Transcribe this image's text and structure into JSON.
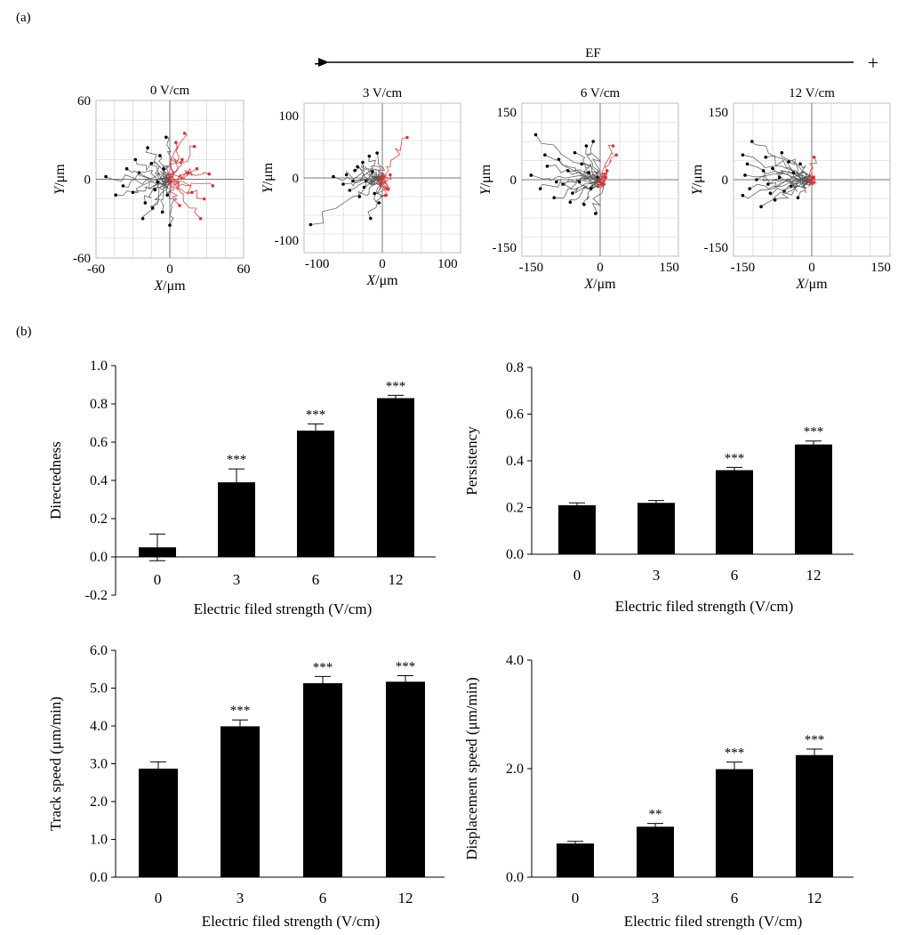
{
  "panel_labels": {
    "a": "(a)",
    "b": "(b)"
  },
  "ef_indicator": {
    "label": "EF",
    "minus": "-",
    "plus": "+"
  },
  "colors": {
    "bars": "#000000",
    "track_black": "#000000",
    "track_red": "#e03030",
    "grid": "#cfcfcf"
  },
  "chart_data": [
    {
      "type": "scatter",
      "title": "0 V/cm",
      "xlabel_italic": "X",
      "xlabel_unit": "/μm",
      "ylabel_italic": "Y",
      "ylabel_unit": "/μm",
      "xlim": [
        -60,
        60
      ],
      "ylim": [
        -60,
        60
      ],
      "xticks": [
        "-60",
        "0",
        "60"
      ],
      "yticks": [
        "60",
        "0",
        "-60"
      ],
      "grid": true,
      "series": [
        {
          "color": "black",
          "endpoints": [
            [
              -52,
              2
            ],
            [
              -44,
              -12
            ],
            [
              -38,
              -5
            ],
            [
              -30,
              -10
            ],
            [
              -25,
              5
            ],
            [
              -20,
              -18
            ],
            [
              -15,
              12
            ],
            [
              -12,
              -8
            ],
            [
              -8,
              18
            ],
            [
              -6,
              -25
            ],
            [
              -3,
              32
            ],
            [
              0,
              -35
            ],
            [
              -18,
              24
            ],
            [
              -22,
              -30
            ],
            [
              -10,
              -2
            ],
            [
              -5,
              8
            ],
            [
              -2,
              -12
            ],
            [
              -14,
              -22
            ],
            [
              -28,
              15
            ],
            [
              -35,
              8
            ]
          ]
        },
        {
          "color": "red",
          "endpoints": [
            [
              12,
              35
            ],
            [
              20,
              25
            ],
            [
              28,
              -15
            ],
            [
              32,
              4
            ],
            [
              25,
              -30
            ],
            [
              8,
              -20
            ],
            [
              15,
              5
            ],
            [
              10,
              15
            ],
            [
              22,
              8
            ],
            [
              35,
              -5
            ],
            [
              18,
              -10
            ],
            [
              5,
              28
            ]
          ]
        }
      ]
    },
    {
      "type": "scatter",
      "title": "3 V/cm",
      "xlabel_italic": "X",
      "xlabel_unit": "/μm",
      "ylabel_italic": "Y",
      "ylabel_unit": "/μm",
      "xlim": [
        -120,
        120
      ],
      "ylim": [
        -120,
        120
      ],
      "xticks": [
        "-100",
        "0",
        "100"
      ],
      "yticks": [
        "100",
        "0",
        "-100"
      ],
      "grid": true,
      "series": [
        {
          "color": "black",
          "endpoints": [
            [
              -110,
              -75
            ],
            [
              -75,
              2
            ],
            [
              -60,
              -10
            ],
            [
              -50,
              -20
            ],
            [
              -42,
              12
            ],
            [
              -35,
              -30
            ],
            [
              -30,
              25
            ],
            [
              -25,
              -5
            ],
            [
              -18,
              -65
            ],
            [
              -20,
              35
            ],
            [
              -12,
              -25
            ],
            [
              -8,
              40
            ],
            [
              -5,
              -40
            ],
            [
              -45,
              -5
            ],
            [
              -38,
              18
            ],
            [
              -28,
              -15
            ],
            [
              -15,
              10
            ],
            [
              -55,
              5
            ]
          ]
        },
        {
          "color": "red",
          "endpoints": [
            [
              38,
              65
            ],
            [
              8,
              -18
            ],
            [
              12,
              5
            ],
            [
              -3,
              -10
            ],
            [
              5,
              -28
            ]
          ]
        }
      ]
    },
    {
      "type": "scatter",
      "title": "6 V/cm",
      "xlabel_italic": "X",
      "xlabel_unit": "/μm",
      "ylabel_italic": "Y",
      "ylabel_unit": "/μm",
      "xlim": [
        -170,
        170
      ],
      "ylim": [
        -170,
        170
      ],
      "xticks": [
        "-150",
        "0",
        "150"
      ],
      "yticks": [
        "150",
        "0",
        "-150"
      ],
      "grid": true,
      "series": [
        {
          "color": "black",
          "endpoints": [
            [
              -140,
              100
            ],
            [
              -150,
              10
            ],
            [
              -130,
              -20
            ],
            [
              -115,
              30
            ],
            [
              -100,
              -40
            ],
            [
              -90,
              45
            ],
            [
              -80,
              -10
            ],
            [
              -70,
              20
            ],
            [
              -60,
              -30
            ],
            [
              -55,
              60
            ],
            [
              -45,
              -5
            ],
            [
              -40,
              35
            ],
            [
              -35,
              -55
            ],
            [
              -25,
              15
            ],
            [
              -20,
              -20
            ],
            [
              -15,
              85
            ],
            [
              -10,
              -75
            ],
            [
              -5,
              5
            ],
            [
              -30,
              75
            ],
            [
              -95,
              -5
            ],
            [
              -120,
              55
            ],
            [
              -65,
              -50
            ]
          ]
        },
        {
          "color": "red",
          "endpoints": [
            [
              28,
              75
            ],
            [
              35,
              55
            ],
            [
              8,
              -10
            ],
            [
              15,
              20
            ],
            [
              -5,
              -15
            ],
            [
              12,
              5
            ]
          ]
        }
      ]
    },
    {
      "type": "scatter",
      "title": "12 V/cm",
      "xlabel_italic": "X",
      "xlabel_unit": "/μm",
      "ylabel_italic": "Y",
      "ylabel_unit": "/μm",
      "xlim": [
        -170,
        170
      ],
      "ylim": [
        -170,
        170
      ],
      "xticks": [
        "-150",
        "0",
        "150"
      ],
      "yticks": [
        "150",
        "0",
        "-150"
      ],
      "grid": true,
      "series": [
        {
          "color": "black",
          "endpoints": [
            [
              -130,
              85
            ],
            [
              -150,
              55
            ],
            [
              -140,
              35
            ],
            [
              -145,
              10
            ],
            [
              -135,
              -20
            ],
            [
              -150,
              -35
            ],
            [
              -110,
              -60
            ],
            [
              -100,
              50
            ],
            [
              -95,
              -10
            ],
            [
              -85,
              25
            ],
            [
              -80,
              -45
            ],
            [
              -70,
              5
            ],
            [
              -65,
              60
            ],
            [
              -60,
              -25
            ],
            [
              -50,
              40
            ],
            [
              -45,
              -15
            ],
            [
              -40,
              15
            ],
            [
              -30,
              -40
            ],
            [
              -25,
              35
            ],
            [
              -120,
              0
            ],
            [
              -105,
              20
            ],
            [
              -90,
              -30
            ]
          ]
        },
        {
          "color": "red",
          "endpoints": [
            [
              5,
              50
            ],
            [
              3,
              5
            ],
            [
              2,
              -8
            ]
          ]
        }
      ]
    },
    {
      "type": "bar",
      "ylabel": "Directedness",
      "xlabel": "Electric filed strength (V/cm)",
      "categories": [
        "0",
        "3",
        "6",
        "12"
      ],
      "values": [
        0.05,
        0.39,
        0.66,
        0.83
      ],
      "errors": [
        0.07,
        0.07,
        0.035,
        0.015
      ],
      "significance": [
        "",
        "***",
        "***",
        "***"
      ],
      "ylim": [
        -0.2,
        1.0
      ],
      "yticks": [
        "1.0",
        "0.8",
        "0.6",
        "0.4",
        "0.2",
        "0.0",
        "-0.2"
      ]
    },
    {
      "type": "bar",
      "ylabel": "Persistency",
      "xlabel": "Electric filed strength (V/cm)",
      "categories": [
        "0",
        "3",
        "6",
        "12"
      ],
      "values": [
        0.21,
        0.22,
        0.36,
        0.47
      ],
      "errors": [
        0.01,
        0.01,
        0.012,
        0.015
      ],
      "significance": [
        "",
        "",
        "***",
        "***"
      ],
      "ylim": [
        0.0,
        0.8
      ],
      "yticks": [
        "0.8",
        "0.6",
        "0.4",
        "0.2",
        "0.0"
      ]
    },
    {
      "type": "bar",
      "ylabel": "Track speed  (μm/min)",
      "xlabel": "Electric filed strength (V/cm)",
      "categories": [
        "0",
        "3",
        "6",
        "12"
      ],
      "values": [
        2.87,
        3.99,
        5.13,
        5.17
      ],
      "errors": [
        0.18,
        0.17,
        0.18,
        0.16
      ],
      "significance": [
        "",
        "***",
        "***",
        "***"
      ],
      "ylim": [
        0.0,
        6.0
      ],
      "yticks": [
        "6.0",
        "5.0",
        "4.0",
        "3.0",
        "2.0",
        "1.0",
        "0.0"
      ]
    },
    {
      "type": "bar",
      "ylabel": "Displacement speed (μm/min)",
      "xlabel": "Electric filed strength (V/cm)",
      "categories": [
        "0",
        "3",
        "6",
        "12"
      ],
      "values": [
        0.62,
        0.93,
        1.99,
        2.25
      ],
      "errors": [
        0.04,
        0.06,
        0.13,
        0.11
      ],
      "significance": [
        "",
        "**",
        "***",
        "***"
      ],
      "ylim": [
        0.0,
        4.0
      ],
      "yticks": [
        "4.0",
        "2.0",
        "0.0"
      ]
    }
  ]
}
